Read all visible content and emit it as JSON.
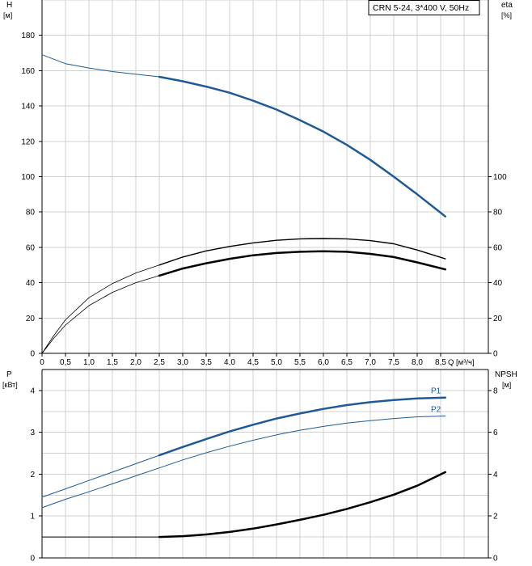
{
  "legend": "CRN 5-24, 3*400 V, 50Hz",
  "x_label": "Q [м³/ч]",
  "x_ticks": [
    0,
    0.5,
    1.0,
    1.5,
    2.0,
    2.5,
    3.0,
    3.5,
    4.0,
    4.5,
    5.0,
    5.5,
    6.0,
    6.5,
    7.0,
    7.5,
    8.0,
    8.5
  ],
  "x_tick_labels": [
    "0",
    "0,5",
    "1,0",
    "1,5",
    "2,0",
    "2,5",
    "3,0",
    "3,5",
    "4,0",
    "4,5",
    "5,0",
    "5,5",
    "6,0",
    "6,5",
    "7,0",
    "7,5",
    "8,0",
    "8,5"
  ],
  "colors": {
    "blue": "#1f5a96",
    "black": "#000000",
    "grid": "#d0d0d0"
  },
  "chart_data": [
    {
      "type": "line",
      "panel": "top",
      "xlim": [
        0,
        9.4
      ],
      "left_axis": {
        "label_line1": "H",
        "label_line2": "[м]",
        "ylim": [
          0,
          200
        ],
        "ticks": [
          0,
          20,
          40,
          60,
          80,
          100,
          120,
          140,
          160,
          180
        ]
      },
      "right_axis": {
        "label_line1": "eta",
        "label_line2": "[%]",
        "ylim": [
          0,
          200
        ],
        "ticks": [
          0,
          20,
          40,
          60,
          80,
          100
        ]
      },
      "grid": true,
      "series": [
        {
          "role": "H-extended",
          "axis": "left",
          "color": "blue",
          "width": 1,
          "x": [
            0,
            0.5,
            1.0,
            1.5,
            2.0,
            2.5
          ],
          "y": [
            169,
            164,
            161.5,
            159.5,
            158,
            156.5
          ]
        },
        {
          "role": "H",
          "axis": "left",
          "color": "blue",
          "width": 2.5,
          "x": [
            2.5,
            3.0,
            3.5,
            4.0,
            4.5,
            5.0,
            5.5,
            6.0,
            6.5,
            7.0,
            7.5,
            8.0,
            8.6
          ],
          "y": [
            156.5,
            154,
            151,
            147.5,
            143,
            138,
            132,
            125.5,
            118,
            109.5,
            100,
            90,
            77.5
          ]
        },
        {
          "role": "eta-upper-extended",
          "axis": "right",
          "color": "black",
          "width": 0.8,
          "x": [
            0,
            0.25,
            0.5,
            1.0,
            1.5,
            2.0,
            2.5
          ],
          "y": [
            0,
            10,
            19,
            31.5,
            39.5,
            45.5,
            50
          ]
        },
        {
          "role": "eta-upper",
          "axis": "right",
          "color": "black",
          "width": 1.4,
          "x": [
            2.5,
            3.0,
            3.5,
            4.0,
            4.5,
            5.0,
            5.5,
            6.0,
            6.5,
            7.0,
            7.5,
            8.0,
            8.6
          ],
          "y": [
            50,
            54.5,
            58,
            60.5,
            62.5,
            64,
            64.8,
            65,
            64.8,
            63.8,
            62,
            58.5,
            53.5
          ]
        },
        {
          "role": "eta-lower-extended",
          "axis": "right",
          "color": "black",
          "width": 0.8,
          "x": [
            0,
            0.25,
            0.5,
            1.0,
            1.5,
            2.0,
            2.5
          ],
          "y": [
            0,
            8.5,
            16,
            27,
            34.5,
            40,
            44
          ]
        },
        {
          "role": "eta-lower",
          "axis": "right",
          "color": "black",
          "width": 2.5,
          "x": [
            2.5,
            3.0,
            3.5,
            4.0,
            4.5,
            5.0,
            5.5,
            6.0,
            6.5,
            7.0,
            7.5,
            8.0,
            8.6
          ],
          "y": [
            44,
            48,
            51,
            53.5,
            55.5,
            56.8,
            57.5,
            57.8,
            57.5,
            56.3,
            54.5,
            51.5,
            47.5
          ]
        }
      ]
    },
    {
      "type": "line",
      "panel": "bottom",
      "xlim": [
        0,
        9.4
      ],
      "left_axis": {
        "label_line1": "P",
        "label_line2": "[кВт]",
        "ylim": [
          0,
          4.5
        ],
        "ticks": [
          0,
          1,
          2,
          3,
          4
        ]
      },
      "right_axis": {
        "label_line1": "NPSH",
        "label_line2": "[м]",
        "ylim": [
          0,
          9
        ],
        "ticks": [
          0,
          2,
          4,
          6,
          8
        ]
      },
      "grid": true,
      "series": [
        {
          "role": "P1-extended",
          "name": "",
          "axis": "left",
          "color": "blue",
          "width": 1,
          "x": [
            0,
            0.5,
            1.0,
            1.5,
            2.0,
            2.5
          ],
          "y": [
            1.45,
            1.65,
            1.85,
            2.05,
            2.25,
            2.45
          ]
        },
        {
          "role": "P1",
          "name": "P1",
          "axis": "left",
          "color": "blue",
          "width": 2.5,
          "x": [
            2.5,
            3.0,
            3.5,
            4.0,
            4.5,
            5.0,
            5.5,
            6.0,
            6.5,
            7.0,
            7.5,
            8.0,
            8.6
          ],
          "y": [
            2.45,
            2.65,
            2.84,
            3.02,
            3.18,
            3.33,
            3.45,
            3.56,
            3.65,
            3.72,
            3.77,
            3.81,
            3.83
          ]
        },
        {
          "role": "P2-extended",
          "name": "",
          "axis": "left",
          "color": "blue",
          "width": 1,
          "x": [
            0,
            0.5,
            1.0,
            1.5,
            2.0,
            2.5
          ],
          "y": [
            1.2,
            1.4,
            1.58,
            1.77,
            1.96,
            2.15
          ]
        },
        {
          "role": "P2",
          "name": "P2",
          "axis": "left",
          "color": "blue",
          "width": 1,
          "x": [
            2.5,
            3.0,
            3.5,
            4.0,
            4.5,
            5.0,
            5.5,
            6.0,
            6.5,
            7.0,
            7.5,
            8.0,
            8.6
          ],
          "y": [
            2.15,
            2.34,
            2.51,
            2.67,
            2.81,
            2.94,
            3.05,
            3.14,
            3.22,
            3.28,
            3.33,
            3.37,
            3.39
          ]
        },
        {
          "role": "NPSH-extended",
          "axis": "right",
          "color": "black",
          "width": 1,
          "x": [
            0,
            2.5
          ],
          "y": [
            1.0,
            1.0
          ]
        },
        {
          "role": "NPSH",
          "axis": "right",
          "color": "black",
          "width": 2.5,
          "x": [
            2.5,
            3.0,
            3.5,
            4.0,
            4.5,
            5.0,
            5.5,
            6.0,
            6.5,
            7.0,
            7.5,
            8.0,
            8.6
          ],
          "y": [
            1.0,
            1.04,
            1.12,
            1.24,
            1.4,
            1.6,
            1.82,
            2.06,
            2.34,
            2.66,
            3.02,
            3.45,
            4.1
          ]
        }
      ]
    }
  ]
}
